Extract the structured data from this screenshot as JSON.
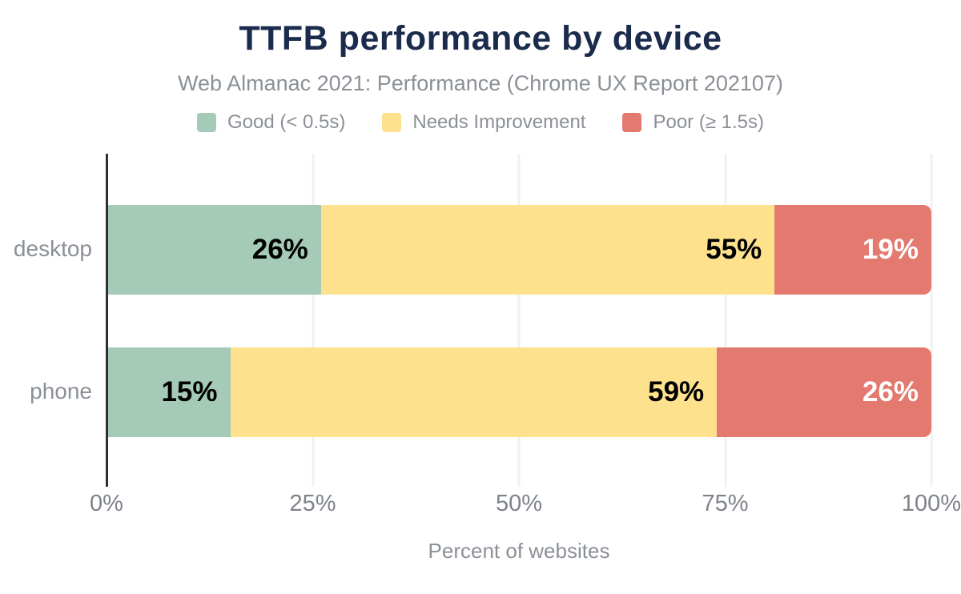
{
  "title": "TTFB performance by device",
  "subtitle": "Web Almanac 2021: Performance (Chrome UX Report 202107)",
  "colors": {
    "title": "#1b2b4d",
    "text_muted": "#8b9097",
    "tick_text": "#7e838a",
    "axis_line": "#2f2f2f",
    "gridline": "#f1f1f1",
    "good": "#a5cbb8",
    "needs_improvement": "#fde18d",
    "poor": "#e3796f"
  },
  "legend": [
    {
      "label": "Good (< 0.5s)",
      "color": "#a5cbb8"
    },
    {
      "label": "Needs Improvement",
      "color": "#fde18d"
    },
    {
      "label": "Poor (≥ 1.5s)",
      "color": "#e3796f"
    }
  ],
  "chart_data": {
    "type": "bar",
    "orientation": "horizontal",
    "stacked": true,
    "title": "TTFB performance by device",
    "subtitle": "Web Almanac 2021: Performance (Chrome UX Report 202107)",
    "categories": [
      "desktop",
      "phone"
    ],
    "series": [
      {
        "name": "Good (< 0.5s)",
        "color": "#a5cbb8",
        "label_color": "#000000",
        "values": [
          26,
          15
        ]
      },
      {
        "name": "Needs Improvement",
        "color": "#fde18d",
        "label_color": "#000000",
        "values": [
          55,
          59
        ]
      },
      {
        "name": "Poor (≥ 1.5s)",
        "color": "#e3796f",
        "label_color": "#ffffff",
        "values": [
          19,
          26
        ]
      }
    ],
    "xlabel": "Percent of websites",
    "ylabel": "",
    "xlim": [
      0,
      100
    ],
    "x_ticks": [
      "0%",
      "25%",
      "50%",
      "75%",
      "100%"
    ],
    "x_tick_values": [
      0,
      25,
      50,
      75,
      100
    ],
    "value_label_format": "{v}%",
    "grid": "vertical",
    "legend_position": "top"
  }
}
